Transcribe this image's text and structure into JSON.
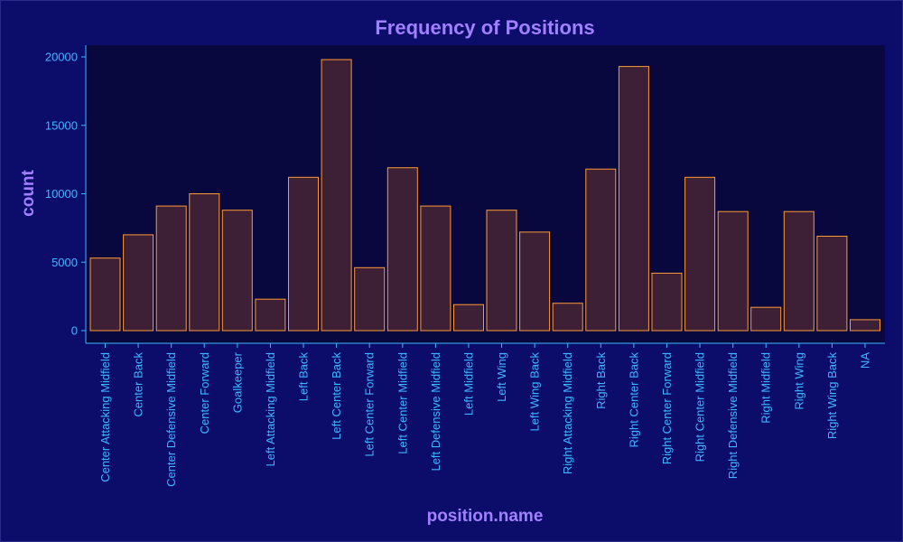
{
  "chart_data": {
    "type": "bar",
    "title": "Frequency of Positions",
    "xlabel": "position.name",
    "ylabel": "count",
    "ylim": [
      0,
      20000
    ],
    "yticks": [
      0,
      5000,
      10000,
      15000,
      20000
    ],
    "grid": false,
    "categories": [
      "Center Attacking Midfield",
      "Center Back",
      "Center Defensive Midfield",
      "Center Forward",
      "Goalkeeper",
      "Left Attacking Midfield",
      "Left Back",
      "Left Center Back",
      "Left Center Forward",
      "Left Center Midfield",
      "Left Defensive Midfield",
      "Left Midfield",
      "Left Wing",
      "Left Wing Back",
      "Right Attacking Midfield",
      "Right Back",
      "Right Center Back",
      "Right Center Forward",
      "Right Center Midfield",
      "Right Defensive Midfield",
      "Right Midfield",
      "Right Wing",
      "Right Wing Back",
      "NA"
    ],
    "values": [
      5300,
      7000,
      9100,
      10000,
      8800,
      2300,
      11200,
      19800,
      4600,
      11900,
      9100,
      1900,
      8800,
      7200,
      2000,
      11800,
      19300,
      4200,
      11200,
      8700,
      1700,
      8700,
      6900,
      800
    ],
    "colors": {
      "background": "#0c0c6b",
      "panel": "#08083f",
      "bar_fill": "#3d2035",
      "bar_stroke": "#ff9a33",
      "axis": "#3fb7ff",
      "title": "#a080ff"
    }
  }
}
